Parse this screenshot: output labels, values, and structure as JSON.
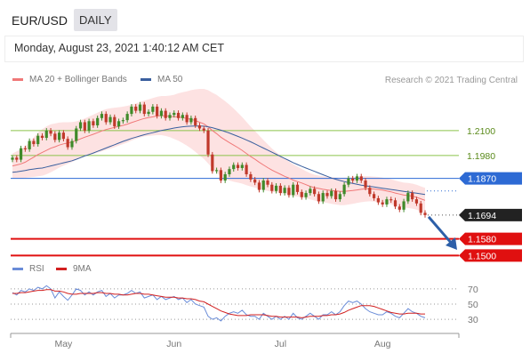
{
  "header": {
    "pair": "EUR/USD",
    "timeframe": "DAILY",
    "datetime": "Monday, August 23, 2021 1:40:12 AM CET"
  },
  "legend": {
    "ma20": "MA 20 + Bollinger Bands",
    "ma50": "MA 50",
    "rsi": "RSI",
    "ma9": "9MA",
    "credit": "Research © 2021 Trading Central"
  },
  "colors": {
    "ma20": "#f07878",
    "ma50": "#3a5f9e",
    "band": "#fde2e2",
    "up": "#3f8a2a",
    "down": "#c0392b",
    "resistance": "#8bc34a",
    "pivot": "#2d6ad4",
    "support": "#e01010",
    "rsi": "#6a8cd8",
    "rsi_ma": "#d22020"
  },
  "chart_data": [
    {
      "type": "candlestick",
      "series_labels": [
        "MA 20 + Bollinger Bands",
        "MA 50"
      ],
      "x_ticks": [
        "May",
        "Jun",
        "Jul",
        "Aug"
      ],
      "ylim": [
        1.148,
        1.23
      ],
      "levels": [
        {
          "label": "1.2100",
          "value": 1.21,
          "kind": "resistance"
        },
        {
          "label": "1.1980",
          "value": 1.198,
          "kind": "resistance"
        },
        {
          "label": "1.1870",
          "value": 1.187,
          "kind": "pivot"
        },
        {
          "label": "1.1694",
          "value": 1.1694,
          "kind": "last"
        },
        {
          "label": "1.1580",
          "value": 1.158,
          "kind": "support"
        },
        {
          "label": "1.1500",
          "value": 1.15,
          "kind": "support"
        }
      ],
      "close": [
        1.197,
        1.196,
        1.2015,
        1.201,
        1.205,
        1.2035,
        1.2075,
        1.2065,
        1.21,
        1.2085,
        1.2055,
        1.209,
        1.206,
        1.202,
        1.205,
        1.211,
        1.214,
        1.21,
        1.2145,
        1.2125,
        1.216,
        1.218,
        1.214,
        1.2165,
        1.212,
        1.2145,
        1.215,
        1.218,
        1.2215,
        1.2195,
        1.2225,
        1.218,
        1.219,
        1.2215,
        1.217,
        1.2195,
        1.216,
        1.2175,
        1.2185,
        1.216,
        1.2175,
        1.214,
        1.216,
        1.2125,
        1.211,
        1.21,
        1.1985,
        1.1905,
        1.191,
        1.186,
        1.189,
        1.1915,
        1.1935,
        1.192,
        1.1935,
        1.189,
        1.1865,
        1.185,
        1.1815,
        1.186,
        1.184,
        1.181,
        1.1835,
        1.18,
        1.1825,
        1.179,
        1.184,
        1.1805,
        1.178,
        1.18,
        1.182,
        1.1795,
        1.176,
        1.18,
        1.1785,
        1.181,
        1.177,
        1.1795,
        1.184,
        1.187,
        1.186,
        1.188,
        1.186,
        1.1825,
        1.1795,
        1.1775,
        1.1755,
        1.1745,
        1.177,
        1.1765,
        1.1735,
        1.172,
        1.176,
        1.18,
        1.177,
        1.175,
        1.1705,
        1.1694
      ],
      "ma20": [
        1.193,
        1.1935,
        1.194,
        1.1948,
        1.196,
        1.1972,
        1.1985,
        1.1995,
        1.2005,
        1.2015,
        1.2022,
        1.203,
        1.2036,
        1.204,
        1.2045,
        1.2052,
        1.206,
        1.2068,
        1.2075,
        1.2082,
        1.209,
        1.2098,
        1.2105,
        1.211,
        1.2115,
        1.212,
        1.2125,
        1.2131,
        1.2138,
        1.2145,
        1.2152,
        1.2158,
        1.2162,
        1.2166,
        1.217,
        1.2172,
        1.217,
        1.2168,
        1.2166,
        1.2165,
        1.2162,
        1.2158,
        1.2154,
        1.2148,
        1.214,
        1.2132,
        1.2118,
        1.21,
        1.2085,
        1.2068,
        1.2055,
        1.2042,
        1.203,
        1.2018,
        1.2005,
        1.199,
        1.1975,
        1.1962,
        1.1948,
        1.1935,
        1.1922,
        1.191,
        1.19,
        1.189,
        1.188,
        1.1872,
        1.1862,
        1.1855,
        1.1848,
        1.184,
        1.1832,
        1.1826,
        1.1822,
        1.1818,
        1.1815,
        1.1812,
        1.181,
        1.1808,
        1.1808,
        1.181,
        1.1812,
        1.1815,
        1.1818,
        1.182,
        1.182,
        1.1819,
        1.1817,
        1.1814,
        1.181,
        1.1806,
        1.18,
        1.1795,
        1.179,
        1.1788,
        1.1785,
        1.178,
        1.1772,
        1.1765
      ],
      "ma50": [
        1.19,
        1.1902,
        1.1905,
        1.1908,
        1.1912,
        1.1915,
        1.1918,
        1.192,
        1.1925,
        1.193,
        1.1935,
        1.194,
        1.1945,
        1.195,
        1.1955,
        1.1962,
        1.197,
        1.1978,
        1.1985,
        1.1992,
        1.2,
        1.2008,
        1.2016,
        1.2024,
        1.2032,
        1.204,
        1.2048,
        1.2055,
        1.2062,
        1.2068,
        1.2074,
        1.208,
        1.2085,
        1.209,
        1.2095,
        1.21,
        1.2104,
        1.2108,
        1.2112,
        1.2115,
        1.2118,
        1.212,
        1.2121,
        1.2122,
        1.2122,
        1.2121,
        1.2118,
        1.2114,
        1.2108,
        1.2102,
        1.2095,
        1.2088,
        1.208,
        1.2072,
        1.2064,
        1.2055,
        1.2046,
        1.2036,
        1.2026,
        1.2016,
        1.2006,
        1.1996,
        1.1986,
        1.1976,
        1.1966,
        1.1956,
        1.1946,
        1.1937,
        1.1928,
        1.192,
        1.1912,
        1.1904,
        1.1896,
        1.1888,
        1.188,
        1.1872,
        1.1866,
        1.186,
        1.1855,
        1.185,
        1.1846,
        1.1842,
        1.1838,
        1.1835,
        1.1832,
        1.1829,
        1.1826,
        1.1823,
        1.182,
        1.1817,
        1.1814,
        1.1811,
        1.1808,
        1.1805,
        1.1802,
        1.1799,
        1.1796,
        1.1793
      ],
      "band_width": [
        0.006,
        0.0065,
        0.007,
        0.0075,
        0.0085,
        0.0095,
        0.0105,
        0.0112,
        0.0115,
        0.0115,
        0.0112,
        0.0108,
        0.0104,
        0.01,
        0.0096,
        0.0092,
        0.009,
        0.009,
        0.0092,
        0.0094,
        0.0096,
        0.0098,
        0.0098,
        0.0097,
        0.0095,
        0.0092,
        0.009,
        0.0088,
        0.0086,
        0.0085,
        0.0085,
        0.0086,
        0.0088,
        0.009,
        0.0092,
        0.0094,
        0.0096,
        0.01,
        0.0106,
        0.0114,
        0.0122,
        0.013,
        0.014,
        0.015,
        0.016,
        0.0168,
        0.0176,
        0.0182,
        0.0186,
        0.0188,
        0.0186,
        0.0182,
        0.0176,
        0.0168,
        0.016,
        0.0152,
        0.0144,
        0.0136,
        0.0128,
        0.012,
        0.0112,
        0.0104,
        0.0096,
        0.009,
        0.0085,
        0.008,
        0.0076,
        0.0072,
        0.0068,
        0.0065,
        0.0063,
        0.0062,
        0.0062,
        0.0062,
        0.0063,
        0.0064,
        0.0065,
        0.0066,
        0.0066,
        0.0065,
        0.0064,
        0.0063,
        0.0062,
        0.0061,
        0.006,
        0.006,
        0.006,
        0.006,
        0.006,
        0.006,
        0.006,
        0.006,
        0.006,
        0.006,
        0.006,
        0.006,
        0.006,
        0.006
      ]
    },
    {
      "type": "line",
      "series_labels": [
        "RSI",
        "9MA"
      ],
      "y_ticks": [
        70,
        50,
        30
      ],
      "ylim": [
        15,
        85
      ],
      "rsi": [
        65,
        62,
        68,
        66,
        70,
        68,
        72,
        70,
        74,
        70,
        58,
        66,
        60,
        55,
        62,
        70,
        68,
        62,
        66,
        62,
        66,
        68,
        60,
        64,
        58,
        62,
        62,
        64,
        68,
        64,
        66,
        58,
        60,
        62,
        56,
        60,
        56,
        58,
        60,
        56,
        58,
        52,
        56,
        50,
        48,
        46,
        34,
        30,
        32,
        28,
        34,
        38,
        40,
        38,
        42,
        36,
        34,
        34,
        30,
        38,
        34,
        30,
        34,
        30,
        34,
        30,
        38,
        32,
        30,
        34,
        38,
        34,
        30,
        36,
        36,
        40,
        36,
        40,
        48,
        54,
        52,
        54,
        50,
        44,
        40,
        38,
        36,
        36,
        40,
        38,
        34,
        32,
        38,
        44,
        40,
        38,
        34,
        32
      ],
      "rsi_ma": [
        64,
        64,
        65,
        65,
        66,
        67,
        68,
        68,
        69,
        69,
        67,
        67,
        66,
        64,
        63,
        63,
        64,
        64,
        64,
        64,
        65,
        65,
        64,
        64,
        63,
        63,
        62,
        62,
        63,
        64,
        64,
        63,
        63,
        62,
        61,
        60,
        59,
        59,
        59,
        58,
        58,
        57,
        57,
        56,
        54,
        53,
        50,
        47,
        44,
        41,
        39,
        37,
        36,
        35,
        35,
        35,
        36,
        36,
        36,
        36,
        35,
        34,
        34,
        33,
        33,
        33,
        33,
        33,
        32,
        33,
        34,
        34,
        34,
        35,
        35,
        36,
        36,
        37,
        39,
        42,
        44,
        46,
        48,
        48,
        48,
        47,
        45,
        43,
        41,
        39,
        38,
        37,
        37,
        38,
        38,
        38,
        37,
        37
      ]
    }
  ]
}
